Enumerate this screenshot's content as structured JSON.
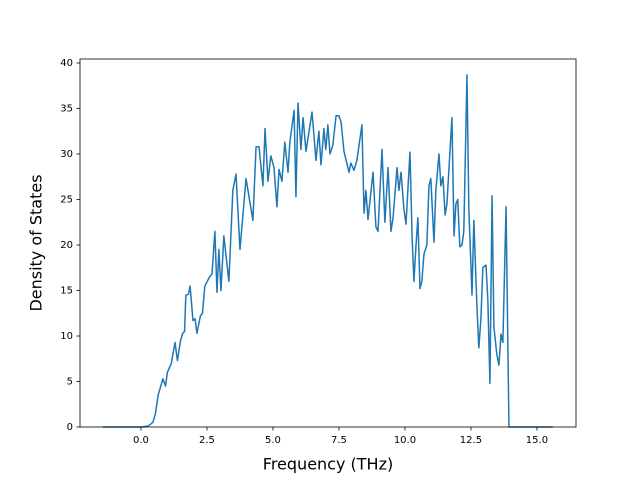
{
  "chart_data": {
    "type": "line",
    "xlabel": "Frequency (THz)",
    "ylabel": "Density of States",
    "x": [
      -1.45,
      0.0,
      0.27,
      0.45,
      0.55,
      0.65,
      0.75,
      0.83,
      0.93,
      1.0,
      1.15,
      1.29,
      1.38,
      1.5,
      1.58,
      1.65,
      1.7,
      1.8,
      1.86,
      1.97,
      2.05,
      2.12,
      2.25,
      2.33,
      2.42,
      2.6,
      2.69,
      2.8,
      2.88,
      2.95,
      3.03,
      3.14,
      3.33,
      3.48,
      3.6,
      3.75,
      3.98,
      4.24,
      4.36,
      4.47,
      4.62,
      4.7,
      4.81,
      4.92,
      5.04,
      5.15,
      5.23,
      5.34,
      5.45,
      5.57,
      5.64,
      5.8,
      5.87,
      5.95,
      6.06,
      6.14,
      6.25,
      6.48,
      6.63,
      6.74,
      6.82,
      6.93,
      7.0,
      7.08,
      7.16,
      7.27,
      7.39,
      7.5,
      7.58,
      7.69,
      7.88,
      7.95,
      8.07,
      8.18,
      8.37,
      8.45,
      8.52,
      8.6,
      8.79,
      8.9,
      8.98,
      9.13,
      9.24,
      9.36,
      9.47,
      9.55,
      9.7,
      9.77,
      9.85,
      9.96,
      10.04,
      10.19,
      10.27,
      10.34,
      10.42,
      10.49,
      10.57,
      10.64,
      10.72,
      10.83,
      10.91,
      10.98,
      11.1,
      11.17,
      11.29,
      11.36,
      11.44,
      11.52,
      11.59,
      11.78,
      11.86,
      11.93,
      12.0,
      12.08,
      12.16,
      12.23,
      12.35,
      12.42,
      12.54,
      12.61,
      12.73,
      12.8,
      12.88,
      12.95,
      13.07,
      13.14,
      13.22,
      13.3,
      13.37,
      13.48,
      13.56,
      13.64,
      13.71,
      13.83,
      13.94,
      15.6
    ],
    "values": [
      0,
      0,
      0.1,
      0.5,
      1.5,
      3.5,
      4.5,
      5.3,
      4.5,
      6.0,
      7.0,
      9.3,
      7.3,
      9.5,
      10.3,
      10.5,
      14.5,
      14.6,
      15.5,
      11.7,
      11.9,
      10.3,
      12.2,
      12.5,
      15.5,
      16.5,
      16.8,
      21.5,
      14.8,
      19.5,
      15.0,
      21.0,
      16.0,
      26.0,
      27.8,
      19.5,
      27.3,
      22.7,
      30.8,
      30.8,
      26.5,
      32.8,
      27.0,
      29.8,
      28.5,
      24.2,
      28.3,
      27.0,
      31.3,
      28.0,
      31.3,
      34.8,
      25.3,
      35.6,
      30.5,
      34.0,
      30.3,
      34.6,
      29.3,
      32.5,
      28.8,
      32.8,
      30.5,
      33.2,
      30.0,
      31.0,
      34.2,
      34.2,
      33.5,
      30.3,
      28.0,
      29.0,
      28.2,
      29.3,
      33.2,
      23.5,
      26.0,
      22.8,
      28.0,
      22.0,
      21.5,
      30.5,
      22.5,
      28.5,
      21.5,
      23.0,
      28.5,
      26.0,
      28.0,
      24.0,
      22.3,
      30.2,
      21.0,
      16.0,
      20.0,
      23.0,
      15.2,
      16.0,
      19.0,
      20.0,
      26.5,
      27.3,
      20.3,
      26.0,
      30.0,
      26.5,
      27.5,
      23.3,
      24.5,
      34.0,
      21.0,
      24.5,
      25.0,
      19.8,
      20.0,
      21.5,
      38.7,
      24.0,
      14.5,
      22.7,
      13.0,
      8.7,
      12.0,
      17.5,
      17.8,
      14.0,
      4.8,
      25.4,
      11.0,
      8.0,
      6.8,
      10.2,
      9.3,
      24.2,
      0,
      0
    ],
    "color": "#1f77b4",
    "xlim": [
      -2.31,
      16.48
    ],
    "xticks": [
      {
        "value": 0,
        "label": "0.0"
      },
      2.5,
      {
        "value": 5,
        "label": "5.0"
      },
      7.5,
      {
        "value": 10,
        "label": "10.0"
      },
      12.5,
      {
        "value": 15,
        "label": "15.0"
      }
    ],
    "ylim": [
      0,
      40.44
    ],
    "yticks": [
      0,
      5,
      10,
      15,
      20,
      25,
      30,
      35,
      40
    ],
    "grid": false
  }
}
